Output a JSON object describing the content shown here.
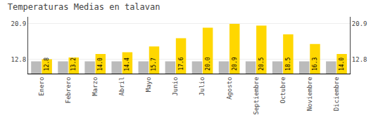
{
  "chart_data": {
    "type": "bar",
    "title": "Temperaturas Medias en talavan",
    "categories": [
      "Enero",
      "Febrero",
      "Marzo",
      "Abril",
      "Mayo",
      "Junio",
      "Julio",
      "Agosto",
      "Septiembre",
      "Octubre",
      "Noviembre",
      "Diciembre"
    ],
    "series": [
      {
        "color": "#BBBBBB",
        "values": [
          12.3,
          12.3,
          12.3,
          12.3,
          12.3,
          12.3,
          12.3,
          12.3,
          12.3,
          12.3,
          12.3,
          12.3
        ]
      },
      {
        "color": "#FFD700",
        "values": [
          12.8,
          13.2,
          14.0,
          14.4,
          15.7,
          17.6,
          20.0,
          20.9,
          20.5,
          18.5,
          16.3,
          14.0
        ],
        "value_labels": [
          "12.8",
          "13.2",
          "14.0",
          "14.4",
          "15.7",
          "17.6",
          "20.0",
          "20.9",
          "20.5",
          "18.5",
          "16.3",
          "14.0"
        ]
      }
    ],
    "ylim": [
      9.5,
      22.5
    ],
    "yticks": [
      12.8,
      20.9
    ],
    "y2lim": [
      9.5,
      22.5
    ],
    "y2ticks": [
      12.8,
      20.9
    ],
    "grid": true,
    "data_labels": true
  }
}
